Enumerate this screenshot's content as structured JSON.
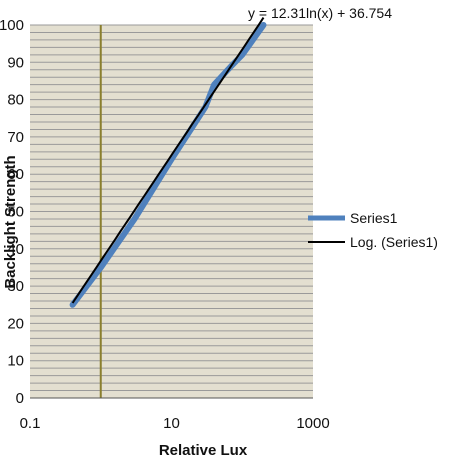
{
  "chart_data": {
    "type": "line",
    "xlabel": "Relative Lux",
    "ylabel": "Backlight Strength",
    "x_scale": "log",
    "xlim": [
      0.1,
      1000
    ],
    "ylim": [
      0,
      100
    ],
    "x_ticks": [
      "0.1",
      "10",
      "1000"
    ],
    "y_ticks": [
      "0",
      "10",
      "20",
      "30",
      "40",
      "50",
      "60",
      "70",
      "80",
      "90",
      "100"
    ],
    "grid": "horizontal, minor",
    "background_color": "#e3dfd0",
    "gridline_color": "#9a9a9a",
    "vertical_marker_x": 1,
    "vertical_marker_color": "#8a7f2e",
    "legend_position": "right",
    "series": [
      {
        "name": "Series1",
        "color": "#4f81bd",
        "x": [
          0.4,
          1,
          3,
          10,
          30,
          40,
          70,
          100,
          200
        ],
        "y": [
          25,
          35,
          48,
          64,
          78,
          84,
          89,
          92,
          100
        ]
      }
    ],
    "trendline": {
      "name": "Log. (Series1)",
      "color": "#000000",
      "type": "logarithmic",
      "equation": "y = 12.31ln(x) + 36.754",
      "slope": 12.31,
      "intercept": 36.754,
      "x_range": [
        0.4,
        200
      ]
    }
  }
}
